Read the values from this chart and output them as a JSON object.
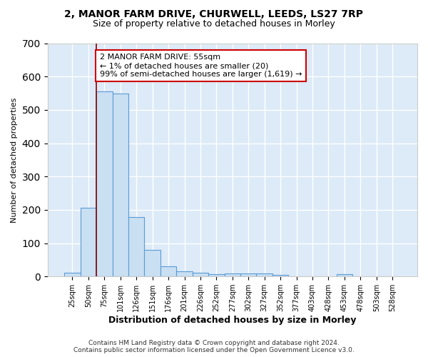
{
  "title1": "2, MANOR FARM DRIVE, CHURWELL, LEEDS, LS27 7RP",
  "title2": "Size of property relative to detached houses in Morley",
  "xlabel": "Distribution of detached houses by size in Morley",
  "ylabel": "Number of detached properties",
  "categories": [
    "25sqm",
    "50sqm",
    "75sqm",
    "101sqm",
    "126sqm",
    "151sqm",
    "176sqm",
    "201sqm",
    "226sqm",
    "252sqm",
    "277sqm",
    "302sqm",
    "327sqm",
    "352sqm",
    "377sqm",
    "403sqm",
    "428sqm",
    "453sqm",
    "478sqm",
    "503sqm",
    "528sqm"
  ],
  "values": [
    12,
    207,
    555,
    550,
    178,
    80,
    30,
    15,
    12,
    6,
    10,
    10,
    8,
    4,
    0,
    0,
    0,
    6,
    0,
    0,
    0
  ],
  "bar_color": "#c9dff2",
  "bar_edge_color": "#5b9bd5",
  "background_color": "#ddeaf7",
  "grid_color": "#ffffff",
  "red_line_x": 1.5,
  "annotation_text": "2 MANOR FARM DRIVE: 55sqm\n← 1% of detached houses are smaller (20)\n99% of semi-detached houses are larger (1,619) →",
  "annotation_box_color": "#ffffff",
  "annotation_box_edge": "#cc0000",
  "footer": "Contains HM Land Registry data © Crown copyright and database right 2024.\nContains public sector information licensed under the Open Government Licence v3.0.",
  "ylim": [
    0,
    700
  ],
  "yticks": [
    0,
    100,
    200,
    300,
    400,
    500,
    600,
    700
  ],
  "fig_bg": "#ffffff"
}
